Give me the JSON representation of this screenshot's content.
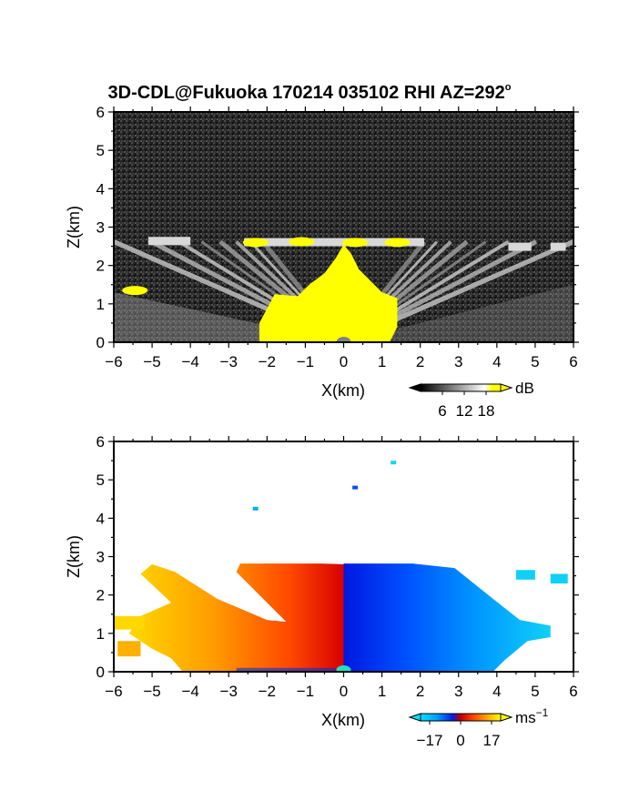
{
  "figure": {
    "title": "3D-CDL@Fukuoka 170214 035102 RHI AZ=292",
    "title_degree_mark": "o"
  },
  "chart_data": [
    {
      "type": "heatmap",
      "name": "reflectivity-panel",
      "title": "",
      "xlabel": "X(km)",
      "ylabel": "Z(km)",
      "xlim": [
        -6,
        6
      ],
      "ylim": [
        0,
        6
      ],
      "xticks": [
        "-6",
        "-5",
        "-4",
        "-3",
        "-2",
        "-1",
        "0",
        "1",
        "2",
        "3",
        "4",
        "5",
        "6"
      ],
      "yticks": [
        "0",
        "1",
        "2",
        "3",
        "4",
        "5",
        "6"
      ],
      "colorbar": {
        "unit": "dB",
        "ticks": [
          "6",
          "12",
          "18"
        ],
        "tick_values": [
          6,
          12,
          18
        ],
        "range": [
          0,
          22
        ]
      },
      "colors": {
        "background": "#202020",
        "high": "#ffff00",
        "beam": "#d8d8d8",
        "mid": "#8a8a8a"
      },
      "echo_top_km": 2.7,
      "strong_echo_region": {
        "x": [
          -2.2,
          1.4
        ],
        "z": [
          0,
          1.3
        ]
      },
      "fan_rays_deg": [
        6,
        10,
        14,
        18,
        22,
        26,
        30,
        34,
        38,
        42,
        46,
        50,
        54
      ],
      "layer_echo_segments": [
        {
          "x0": -5.1,
          "x1": -4.0,
          "z": 2.65
        },
        {
          "x0": -2.6,
          "x1": 2.1,
          "z": 2.62
        },
        {
          "x0": 4.3,
          "x1": 4.9,
          "z": 2.5
        },
        {
          "x0": 5.4,
          "x1": 5.8,
          "z": 2.5
        }
      ],
      "yellow_blobs": [
        {
          "x": -2.3,
          "z": 2.6
        },
        {
          "x": -1.1,
          "z": 2.62
        },
        {
          "x": 0.3,
          "z": 2.6
        },
        {
          "x": 1.4,
          "z": 2.6
        },
        {
          "x": -5.45,
          "z": 1.35
        }
      ]
    },
    {
      "type": "heatmap",
      "name": "doppler-velocity-panel",
      "title": "",
      "xlabel": "X(km)",
      "ylabel": "Z(km)",
      "xlim": [
        -6,
        6
      ],
      "ylim": [
        0,
        6
      ],
      "xticks": [
        "-6",
        "-5",
        "-4",
        "-3",
        "-2",
        "-1",
        "0",
        "1",
        "2",
        "3",
        "4",
        "5",
        "6"
      ],
      "yticks": [
        "0",
        "1",
        "2",
        "3",
        "4",
        "5",
        "6"
      ],
      "colorbar": {
        "unit": "ms",
        "unit_exponent": "-1",
        "ticks": [
          "-17",
          "0",
          "17"
        ],
        "tick_values": [
          -17,
          0,
          17
        ],
        "range": [
          -22,
          22
        ]
      },
      "colors": {
        "negative_far": "#00c0f0",
        "negative": "#0040ff",
        "zero": "#d00000",
        "positive": "#ff8000",
        "positive_far": "#ffff00",
        "near_zero": "#20e0c0"
      },
      "echo_top_km": 2.8,
      "left_side_velocity": "positive",
      "right_side_velocity": "negative",
      "isolated_points": [
        {
          "x": 1.3,
          "z": 5.45
        },
        {
          "x": 0.3,
          "z": 4.8
        },
        {
          "x": -2.3,
          "z": 4.25
        }
      ]
    }
  ]
}
